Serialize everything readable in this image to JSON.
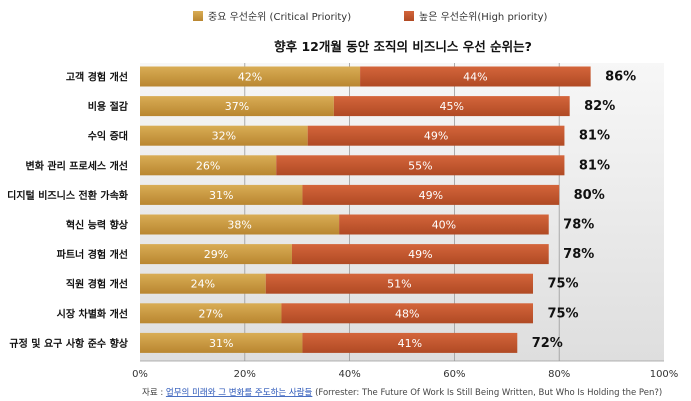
{
  "chart_data": {
    "type": "bar",
    "orientation": "horizontal",
    "stacked": true,
    "title": "향후 12개월 동안 조직의 비즈니스 우선 순위는?",
    "categories": [
      "고객 경험 개선",
      "비용 절감",
      "수익 증대",
      "변화 관리 프로세스 개선",
      "디지털 비즈니스 전환 가속화",
      "혁신 능력 향상",
      "파트너 경험 개선",
      "직원 경험 개선",
      "시장 차별화 개선",
      "규정 및 요구 사항 준수 향상"
    ],
    "series": [
      {
        "name": "중요 우선순위 (Critical Priority)",
        "color": "#c9993f",
        "values": [
          42,
          37,
          32,
          26,
          31,
          38,
          29,
          24,
          27,
          31
        ]
      },
      {
        "name": "높은 우선순위(High priority)",
        "color": "#c4572e",
        "values": [
          44,
          45,
          49,
          55,
          49,
          40,
          49,
          51,
          48,
          41
        ]
      }
    ],
    "totals": [
      86,
      82,
      81,
      81,
      80,
      78,
      78,
      75,
      75,
      72
    ],
    "value_suffix": "%",
    "xlim": [
      0,
      100
    ],
    "xticks": [
      "0%",
      "20%",
      "40%",
      "60%",
      "80%",
      "100%"
    ],
    "grid": true,
    "legend_position": "top"
  },
  "source": {
    "prefix": "자료 : ",
    "link": "업무의 미래와 그 변화를 주도하는 사람들",
    "suffix": "(Forrester: The Future Of Work Is Still Being Written, But Who Is Holding the Pen?)"
  }
}
